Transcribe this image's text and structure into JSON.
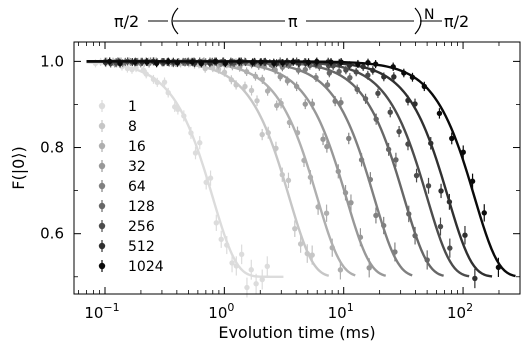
{
  "chart_data": {
    "type": "scatter",
    "xscale": "log",
    "xlim": [
      0.055,
      300
    ],
    "ylim": [
      0.46,
      1.045
    ],
    "xlabel": "Evolution time (ms)",
    "ylabel": "F(|0⟩)",
    "x_ticks": [
      {
        "value": 0.1,
        "base": "10",
        "exp": "−1"
      },
      {
        "value": 1,
        "base": "10",
        "exp": "0"
      },
      {
        "value": 10,
        "base": "10",
        "exp": "1"
      },
      {
        "value": 100,
        "base": "10",
        "exp": "2"
      }
    ],
    "y_ticks": [
      {
        "value": 0.6,
        "label": "0.6"
      },
      {
        "value": 0.8,
        "label": "0.8"
      },
      {
        "value": 1.0,
        "label": "1.0"
      }
    ],
    "legend_position": "left",
    "pulse_sequence": {
      "start": "π/2",
      "middle": "π",
      "superscript": "N",
      "end": "π/2"
    },
    "series": [
      {
        "name": "1",
        "color": "#dcdcdc",
        "T": 0.8,
        "n": 2.2,
        "x_range": [
          0.08,
          2.5
        ]
      },
      {
        "name": "8",
        "color": "#c6c6c6",
        "T": 3.5,
        "n": 2.2,
        "x_range": [
          0.1,
          6
        ]
      },
      {
        "name": "16",
        "color": "#afafaf",
        "T": 6.0,
        "n": 2.2,
        "x_range": [
          0.1,
          10
        ]
      },
      {
        "name": "32",
        "color": "#989898",
        "T": 10.5,
        "n": 2.2,
        "x_range": [
          0.1,
          18
        ]
      },
      {
        "name": "64",
        "color": "#808080",
        "T": 18.0,
        "n": 2.2,
        "x_range": [
          0.1,
          30
        ]
      },
      {
        "name": "128",
        "color": "#676767",
        "T": 32.0,
        "n": 2.2,
        "x_range": [
          0.1,
          55
        ]
      },
      {
        "name": "256",
        "color": "#4c4c4c",
        "T": 50.0,
        "n": 2.2,
        "x_range": [
          0.1,
          90
        ]
      },
      {
        "name": "512",
        "color": "#303030",
        "T": 75.0,
        "n": 2.2,
        "x_range": [
          0.1,
          140
        ]
      },
      {
        "name": "1024",
        "color": "#0a0a0a",
        "T": 125.0,
        "n": 2.2,
        "x_range": [
          0.1,
          220
        ]
      }
    ]
  }
}
